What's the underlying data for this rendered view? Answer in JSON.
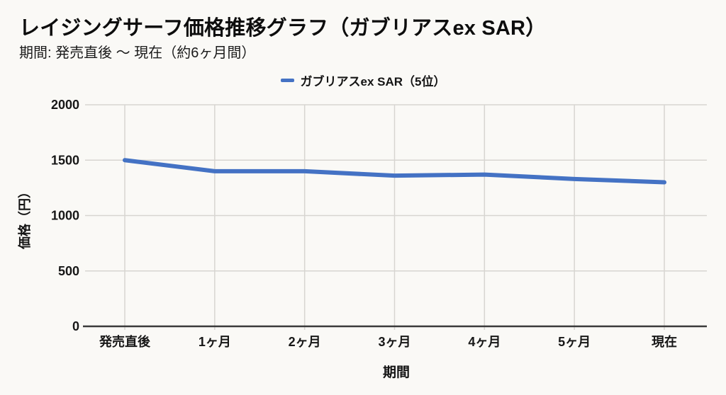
{
  "page": {
    "background_color": "#faf9f6"
  },
  "header": {
    "title": "レイジングサーフ価格推移グラフ（ガブリアスex SAR）",
    "subtitle": "期間: 発売直後 ～ 現在（約6ヶ月間）"
  },
  "legend": {
    "label": "ガブリアスex SAR（5位）",
    "marker_color": "#4472C4"
  },
  "chart_data": {
    "type": "line",
    "title": "レイジングサーフ価格推移グラフ（ガブリアスex SAR）",
    "subtitle": "期間: 発売直後 ～ 現在（約6ヶ月間）",
    "categories": [
      "発売直後",
      "1ヶ月",
      "2ヶ月",
      "3ヶ月",
      "4ヶ月",
      "5ヶ月",
      "現在"
    ],
    "series": [
      {
        "name": "ガブリアスex SAR（5位）",
        "values": [
          1500,
          1400,
          1400,
          1360,
          1370,
          1330,
          1300
        ],
        "color": "#4472C4"
      }
    ],
    "xlabel": "期間",
    "ylabel": "価格（円）",
    "ylim": [
      0,
      2000
    ],
    "yticks": [
      0,
      500,
      1000,
      1500,
      2000
    ],
    "grid": true,
    "legend_position": "top",
    "colors": {
      "gridline": "#d7d5d1",
      "axis_line": "#3a3a3a",
      "tick_text": "#171717"
    }
  }
}
